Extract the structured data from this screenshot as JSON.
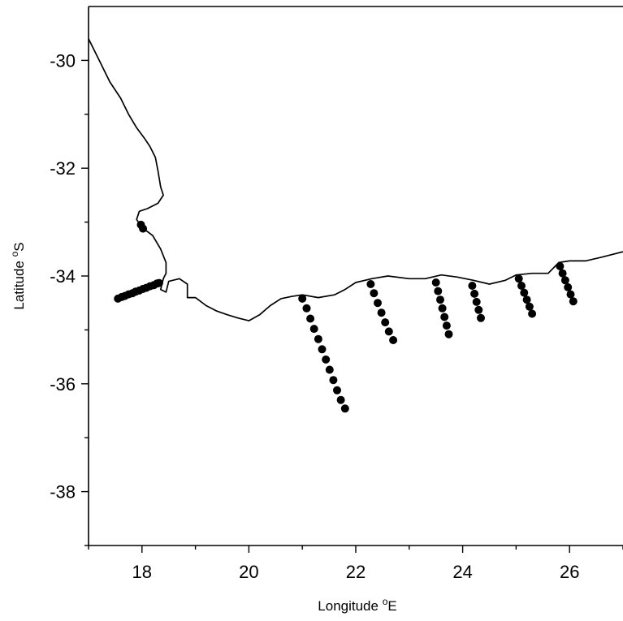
{
  "chart_data": {
    "type": "scatter",
    "xlabel": {
      "text": "Longitude ",
      "sup": "o",
      "unit": "E"
    },
    "ylabel": {
      "text": "Latitude ",
      "sup": "o",
      "unit": "S"
    },
    "xlim": [
      17,
      27
    ],
    "ylim": [
      -39,
      -29
    ],
    "x_major_ticks": [
      18,
      20,
      22,
      24,
      26
    ],
    "x_minor_ticks": [
      17,
      19,
      21,
      23,
      25,
      27
    ],
    "y_major_ticks": [
      -30,
      -32,
      -34,
      -36,
      -38
    ],
    "y_minor_ticks": [
      -31,
      -33,
      -35,
      -37,
      -39
    ],
    "grid": false,
    "coastline": [
      [
        17.0,
        -29.6
      ],
      [
        17.2,
        -30.0
      ],
      [
        17.4,
        -30.4
      ],
      [
        17.6,
        -30.7
      ],
      [
        17.75,
        -31.0
      ],
      [
        17.9,
        -31.25
      ],
      [
        18.05,
        -31.45
      ],
      [
        18.15,
        -31.6
      ],
      [
        18.25,
        -31.8
      ],
      [
        18.3,
        -32.05
      ],
      [
        18.35,
        -32.35
      ],
      [
        18.4,
        -32.5
      ],
      [
        18.3,
        -32.65
      ],
      [
        18.1,
        -32.75
      ],
      [
        17.95,
        -32.8
      ],
      [
        17.9,
        -32.95
      ],
      [
        18.0,
        -33.1
      ],
      [
        18.2,
        -33.25
      ],
      [
        18.35,
        -33.5
      ],
      [
        18.45,
        -33.75
      ],
      [
        18.45,
        -33.95
      ],
      [
        18.4,
        -34.05
      ],
      [
        18.35,
        -34.25
      ],
      [
        18.45,
        -34.3
      ],
      [
        18.5,
        -34.1
      ],
      [
        18.7,
        -34.05
      ],
      [
        18.85,
        -34.15
      ],
      [
        18.85,
        -34.4
      ],
      [
        19.0,
        -34.4
      ],
      [
        19.2,
        -34.55
      ],
      [
        19.4,
        -34.65
      ],
      [
        19.6,
        -34.72
      ],
      [
        19.8,
        -34.78
      ],
      [
        20.0,
        -34.83
      ],
      [
        20.2,
        -34.72
      ],
      [
        20.4,
        -34.55
      ],
      [
        20.6,
        -34.42
      ],
      [
        20.8,
        -34.38
      ],
      [
        21.0,
        -34.35
      ],
      [
        21.3,
        -34.4
      ],
      [
        21.6,
        -34.35
      ],
      [
        21.8,
        -34.25
      ],
      [
        22.0,
        -34.12
      ],
      [
        22.3,
        -34.05
      ],
      [
        22.6,
        -34.0
      ],
      [
        23.0,
        -34.05
      ],
      [
        23.3,
        -34.05
      ],
      [
        23.6,
        -33.98
      ],
      [
        23.9,
        -34.02
      ],
      [
        24.2,
        -34.08
      ],
      [
        24.5,
        -34.15
      ],
      [
        24.8,
        -34.08
      ],
      [
        25.0,
        -33.98
      ],
      [
        25.3,
        -33.95
      ],
      [
        25.6,
        -33.95
      ],
      [
        25.8,
        -33.75
      ],
      [
        26.0,
        -33.72
      ],
      [
        26.3,
        -33.72
      ],
      [
        26.6,
        -33.65
      ],
      [
        27.0,
        -33.55
      ]
    ],
    "series": [
      {
        "x": [
          17.55,
          17.62,
          17.68,
          17.75,
          17.82,
          17.88,
          17.95,
          18.02,
          18.08,
          18.15,
          18.22,
          18.28,
          18.32,
          17.98,
          18.02
        ],
        "y": [
          -34.42,
          -34.39,
          -34.37,
          -34.34,
          -34.32,
          -34.29,
          -34.27,
          -34.24,
          -34.22,
          -34.19,
          -34.17,
          -34.14,
          -34.13,
          -33.05,
          -33.12
        ]
      },
      {
        "x": [
          21.0,
          21.08,
          21.15,
          21.22,
          21.3,
          21.37,
          21.44,
          21.51,
          21.58,
          21.65,
          21.72,
          21.8
        ],
        "y": [
          -34.42,
          -34.6,
          -34.79,
          -34.98,
          -35.17,
          -35.36,
          -35.55,
          -35.74,
          -35.93,
          -36.12,
          -36.3,
          -36.46
        ]
      },
      {
        "x": [
          22.28,
          22.34,
          22.41,
          22.48,
          22.55,
          22.62,
          22.7
        ],
        "y": [
          -34.15,
          -34.32,
          -34.5,
          -34.68,
          -34.86,
          -35.03,
          -35.19
        ]
      },
      {
        "x": [
          23.5,
          23.54,
          23.58,
          23.62,
          23.66,
          23.7,
          23.74
        ],
        "y": [
          -34.12,
          -34.28,
          -34.44,
          -34.6,
          -34.76,
          -34.92,
          -35.08
        ]
      },
      {
        "x": [
          24.18,
          24.22,
          24.26,
          24.3,
          24.34
        ],
        "y": [
          -34.18,
          -34.33,
          -34.48,
          -34.63,
          -34.78
        ]
      },
      {
        "x": [
          25.05,
          25.1,
          25.15,
          25.2,
          25.25,
          25.3
        ],
        "y": [
          -34.05,
          -34.18,
          -34.31,
          -34.44,
          -34.57,
          -34.7
        ]
      },
      {
        "x": [
          25.82,
          25.87,
          25.92,
          25.97,
          26.02,
          26.07
        ],
        "y": [
          -33.82,
          -33.95,
          -34.08,
          -34.21,
          -34.34,
          -34.47
        ]
      }
    ]
  }
}
